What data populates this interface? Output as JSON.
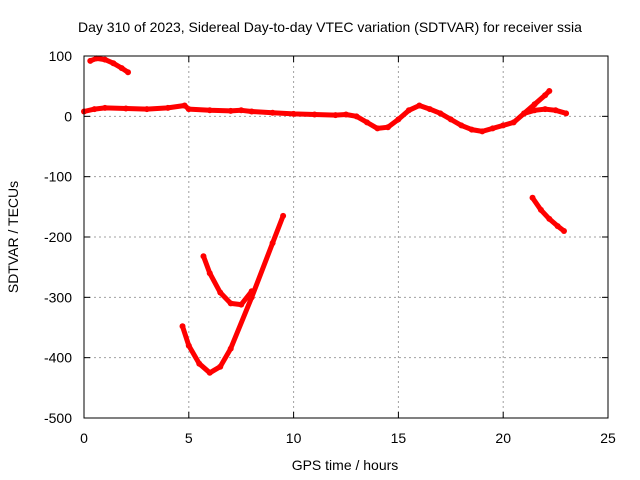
{
  "chart_data": {
    "type": "scatter",
    "title": "Day 310 of 2023, Sidereal Day-to-day VTEC variation (SDTVAR) for receiver ssia",
    "xlabel": "GPS time / hours",
    "ylabel": "SDTVAR / TECUs",
    "xlim": [
      0,
      25
    ],
    "ylim": [
      -500,
      100
    ],
    "xticks": [
      0,
      5,
      10,
      15,
      20,
      25
    ],
    "yticks": [
      100,
      0,
      -100,
      -200,
      -300,
      -400,
      -500
    ],
    "grid": true,
    "color": "#ff0000",
    "series": [
      {
        "name": "arc-top-left",
        "x": [
          0.3,
          0.6,
          1.0,
          1.4,
          1.8,
          2.1
        ],
        "y": [
          92,
          96,
          94,
          88,
          80,
          73
        ]
      },
      {
        "name": "main-trace",
        "x": [
          0,
          0.5,
          1,
          2,
          3,
          4,
          4.8,
          5,
          6,
          7,
          7.5,
          8,
          9,
          10,
          11,
          12,
          12.5,
          13,
          13.5,
          14,
          14.5,
          15,
          15.5,
          16,
          16.5,
          17,
          17.5,
          18,
          18.5,
          19,
          19.5,
          20,
          20.5,
          21,
          21.5,
          22,
          22.5,
          23
        ],
        "y": [
          8,
          12,
          14,
          13,
          12,
          14,
          18,
          12,
          10,
          9,
          10,
          8,
          6,
          4,
          3,
          2,
          3,
          0,
          -10,
          -20,
          -18,
          -5,
          10,
          18,
          12,
          5,
          -5,
          -15,
          -22,
          -25,
          -20,
          -15,
          -10,
          5,
          10,
          12,
          10,
          5
        ]
      },
      {
        "name": "spike-22",
        "x": [
          21.0,
          21.5,
          22.0,
          22.2
        ],
        "y": [
          5,
          20,
          35,
          42
        ]
      },
      {
        "name": "curve-lower",
        "x": [
          4.7,
          5.0,
          5.5,
          6.0,
          6.5,
          7.0,
          8.0,
          9.0,
          9.5
        ],
        "y": [
          -348,
          -380,
          -410,
          -425,
          -415,
          -385,
          -300,
          -210,
          -165
        ]
      },
      {
        "name": "curve-upper",
        "x": [
          5.7,
          6.0,
          6.5,
          7.0,
          7.5,
          8.0
        ],
        "y": [
          -232,
          -260,
          -292,
          -310,
          -312,
          -290
        ]
      },
      {
        "name": "descending-right",
        "x": [
          21.4,
          21.8,
          22.2,
          22.6,
          22.9
        ],
        "y": [
          -135,
          -155,
          -170,
          -182,
          -190
        ]
      }
    ]
  }
}
